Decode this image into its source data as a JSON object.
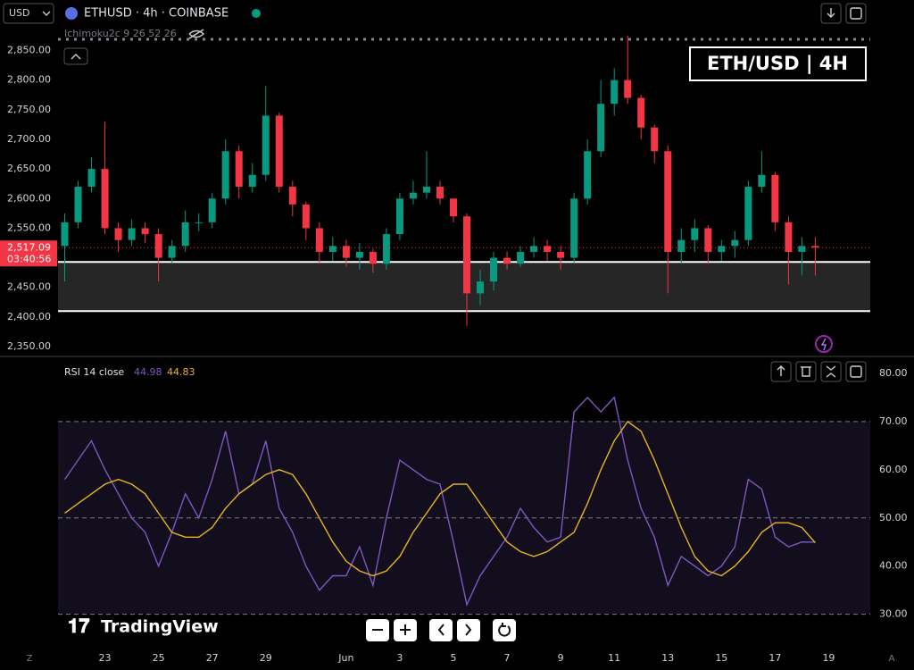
{
  "header": {
    "currency": "USD",
    "symbol": "ETHUSD · 4h · COINBASE",
    "indicator": "Ichimoku2c 9 26 52 26",
    "watermark": "ETH/USD | 4H",
    "brand": "TradingView",
    "corner_left": "Z",
    "corner_right": "A"
  },
  "chart_data": [
    {
      "type": "candlestick",
      "open": [
        2520,
        2560,
        2620,
        2650,
        2550,
        2530,
        2550,
        2540,
        2500,
        2520,
        2560,
        2560,
        2600,
        2680,
        2620,
        2640,
        2740,
        2620,
        2590,
        2550,
        2510,
        2520,
        2500,
        2510,
        2490,
        2540,
        2600,
        2610,
        2620,
        2600,
        2570,
        2440,
        2460,
        2500,
        2490,
        2510,
        2520,
        2510,
        2500,
        2600,
        2680,
        2760,
        2800,
        2770,
        2720,
        2680,
        2510,
        2530,
        2550,
        2510,
        2520,
        2530,
        2620,
        2640,
        2560,
        2510,
        2520
      ],
      "high": [
        2575,
        2630,
        2670,
        2730,
        2560,
        2565,
        2560,
        2550,
        2530,
        2580,
        2575,
        2610,
        2700,
        2690,
        2660,
        2790,
        2745,
        2630,
        2595,
        2560,
        2535,
        2530,
        2525,
        2515,
        2550,
        2610,
        2630,
        2680,
        2630,
        2600,
        2575,
        2480,
        2510,
        2510,
        2520,
        2535,
        2530,
        2520,
        2610,
        2700,
        2800,
        2820,
        2875,
        2775,
        2725,
        2690,
        2550,
        2565,
        2555,
        2530,
        2545,
        2630,
        2680,
        2645,
        2570,
        2535,
        2535
      ],
      "low": [
        2460,
        2550,
        2610,
        2540,
        2510,
        2520,
        2525,
        2460,
        2490,
        2510,
        2545,
        2550,
        2590,
        2600,
        2610,
        2630,
        2610,
        2570,
        2530,
        2490,
        2495,
        2485,
        2480,
        2475,
        2480,
        2530,
        2590,
        2600,
        2590,
        2560,
        2385,
        2420,
        2445,
        2480,
        2485,
        2500,
        2495,
        2480,
        2490,
        2590,
        2670,
        2740,
        2760,
        2700,
        2660,
        2440,
        2490,
        2510,
        2490,
        2495,
        2500,
        2520,
        2610,
        2545,
        2455,
        2470,
        2470
      ],
      "close": [
        2560,
        2620,
        2650,
        2550,
        2530,
        2550,
        2540,
        2500,
        2520,
        2560,
        2560,
        2600,
        2680,
        2620,
        2640,
        2740,
        2620,
        2590,
        2550,
        2510,
        2520,
        2500,
        2510,
        2490,
        2540,
        2600,
        2610,
        2620,
        2600,
        2570,
        2440,
        2460,
        2500,
        2490,
        2510,
        2520,
        2510,
        2500,
        2600,
        2680,
        2760,
        2800,
        2770,
        2720,
        2680,
        2510,
        2530,
        2550,
        2510,
        2520,
        2530,
        2620,
        2640,
        2560,
        2510,
        2520,
        2517.09
      ],
      "up_color": "#089981",
      "down_color": "#f23645",
      "last_label": "2,517.09",
      "countdown": "03:40:56",
      "levels": [
        2493,
        2410
      ],
      "ylim": [
        2335,
        2890
      ],
      "yticks": [
        {
          "value": 2350,
          "label": "2,350.00"
        },
        {
          "value": 2400,
          "label": "2,400.00"
        },
        {
          "value": 2450,
          "label": "2,450.00"
        },
        {
          "value": 2500,
          "label": "2,500.00"
        },
        {
          "value": 2550,
          "label": "2,550.00"
        },
        {
          "value": 2600,
          "label": "2,600.00"
        },
        {
          "value": 2650,
          "label": "2,650.00"
        },
        {
          "value": 2700,
          "label": "2,700.00"
        },
        {
          "value": 2750,
          "label": "2,750.00"
        },
        {
          "value": 2800,
          "label": "2,800.00"
        },
        {
          "value": 2850,
          "label": "2,850.00"
        }
      ],
      "xlim": [
        -0.5,
        60.1
      ],
      "xticks": [
        {
          "value": 3,
          "label": "23"
        },
        {
          "value": 7,
          "label": "25"
        },
        {
          "value": 11,
          "label": "27"
        },
        {
          "value": 15,
          "label": "29"
        },
        {
          "value": 21,
          "label": "Jun"
        },
        {
          "value": 25,
          "label": "3"
        },
        {
          "value": 29,
          "label": "5"
        },
        {
          "value": 33,
          "label": "7"
        },
        {
          "value": 37,
          "label": "9"
        },
        {
          "value": 41,
          "label": "11"
        },
        {
          "value": 45,
          "label": "13"
        },
        {
          "value": 49,
          "label": "15"
        },
        {
          "value": 53,
          "label": "17"
        },
        {
          "value": 57,
          "label": "19"
        }
      ]
    },
    {
      "type": "line",
      "title": "RSI 14 close",
      "series": [
        {
          "name": "RSI",
          "color": "#7e57c2",
          "values": [
            58,
            62,
            66,
            60,
            55,
            50,
            47,
            40,
            47,
            55,
            50,
            58,
            68,
            55,
            57,
            66,
            52,
            47,
            40,
            35,
            38,
            38,
            44,
            36,
            50,
            62,
            60,
            58,
            57,
            45,
            32,
            38,
            42,
            46,
            52,
            48,
            45,
            46,
            72,
            75,
            72,
            75,
            62,
            52,
            46,
            36,
            42,
            40,
            38,
            40,
            44,
            58,
            56,
            46,
            44,
            45,
            44.98
          ]
        },
        {
          "name": "RSI MA",
          "color": "#e6b422",
          "values": [
            51,
            53,
            55,
            57,
            58,
            57,
            55,
            51,
            47,
            46,
            46,
            48,
            52,
            55,
            57,
            59,
            60,
            59,
            55,
            50,
            45,
            41,
            39,
            38,
            39,
            42,
            47,
            51,
            55,
            57,
            57,
            53,
            49,
            45,
            43,
            42,
            43,
            45,
            47,
            53,
            60,
            66,
            70,
            68,
            62,
            55,
            48,
            42,
            39,
            38,
            40,
            43,
            47,
            49,
            49,
            48,
            44.83
          ]
        }
      ],
      "band": [
        30,
        70
      ],
      "hlines": [
        70,
        50,
        30
      ],
      "ylim": [
        24,
        82.4
      ],
      "yticks": [
        {
          "value": 30,
          "label": "30.00"
        },
        {
          "value": 40,
          "label": "40.00"
        },
        {
          "value": 50,
          "label": "50.00"
        },
        {
          "value": 60,
          "label": "60.00"
        },
        {
          "value": 70,
          "label": "70.00"
        },
        {
          "value": 80,
          "label": "80.00"
        }
      ]
    }
  ]
}
